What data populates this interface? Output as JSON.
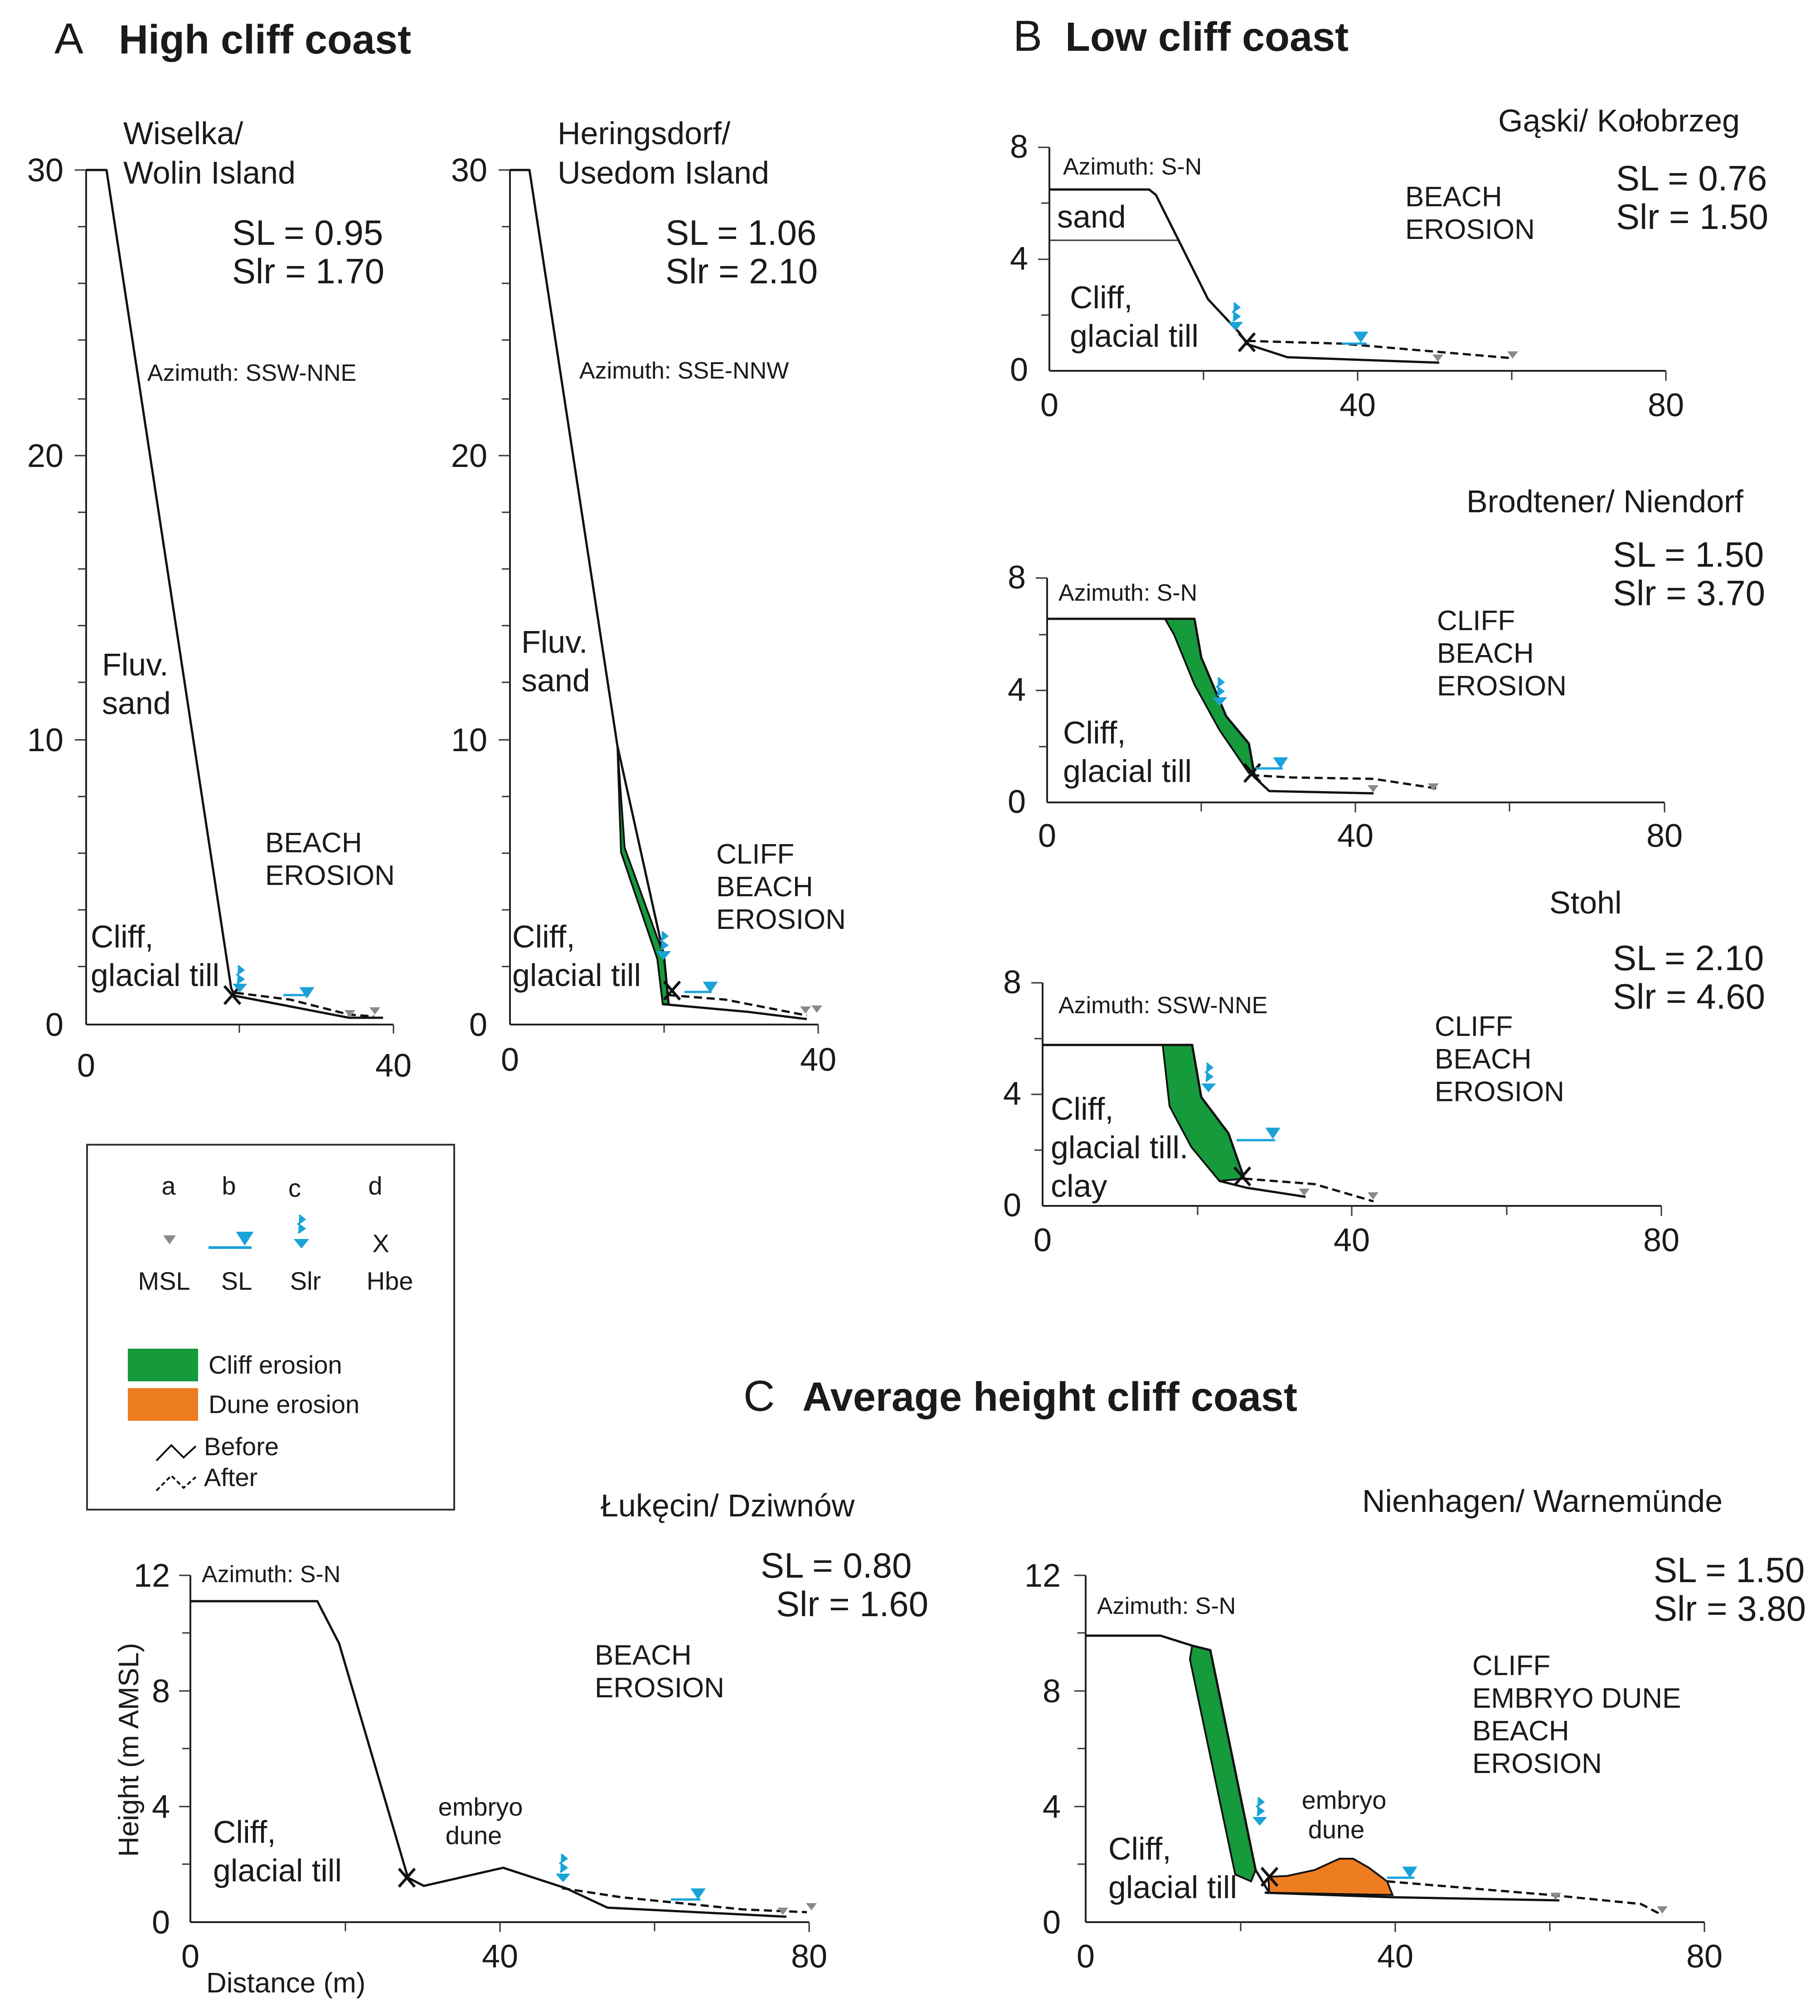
{
  "sections": {
    "a": {
      "letter": "A",
      "title": "High cliff coast"
    },
    "b": {
      "letter": "B",
      "title": "Low cliff coast"
    },
    "c": {
      "letter": "C",
      "title": "Average height cliff coast"
    }
  },
  "panels": {
    "wiselka": {
      "site_line1": "Wiselka/",
      "site_line2": "Wolin Island",
      "sl": "SL = 0.95",
      "slr": "Slr = 1.70",
      "azimuth": "Azimuth: SSW-NNE",
      "upper_unit_line1": "Fluv.",
      "upper_unit_line2": "sand",
      "lower_unit_line1": "Cliff,",
      "lower_unit_line2": "glacial till",
      "erosion_lines": [
        "BEACH",
        "EROSION"
      ],
      "y_ticks": [
        "30",
        "20",
        "10",
        "0"
      ],
      "x_ticks": [
        "0",
        "40"
      ]
    },
    "heringsdorf": {
      "site_line1": "Heringsdorf/",
      "site_line2": "Usedom Island",
      "sl": "SL = 1.06",
      "slr": "Slr = 2.10",
      "azimuth": "Azimuth: SSE-NNW",
      "upper_unit_line1": "Fluv.",
      "upper_unit_line2": "sand",
      "lower_unit_line1": "Cliff,",
      "lower_unit_line2": "glacial till",
      "erosion_lines": [
        "CLIFF",
        "BEACH",
        "EROSION"
      ],
      "y_ticks": [
        "30",
        "20",
        "10",
        "0"
      ],
      "x_ticks": [
        "0",
        "40"
      ]
    },
    "gaski": {
      "site": "Gąski/ Kołobrzeg",
      "sl": "SL = 0.76",
      "slr": "Slr = 1.50",
      "azimuth": "Azimuth: S-N",
      "upper_unit": "sand",
      "lower_unit_line1": "Cliff,",
      "lower_unit_line2": "glacial till",
      "erosion_lines": [
        "BEACH",
        "EROSION"
      ],
      "y_ticks": [
        "8",
        "4",
        "0"
      ],
      "x_ticks": [
        "0",
        "40",
        "80"
      ]
    },
    "brodtener": {
      "site": "Brodtener/ Niendorf",
      "sl": "SL = 1.50",
      "slr": "Slr = 3.70",
      "azimuth": "Azimuth: S-N",
      "lower_unit_line1": "Cliff,",
      "lower_unit_line2": "glacial till",
      "erosion_lines": [
        "CLIFF",
        "BEACH",
        "EROSION"
      ],
      "y_ticks": [
        "8",
        "4",
        "0"
      ],
      "x_ticks": [
        "0",
        "40",
        "80"
      ]
    },
    "stohl": {
      "site": "Stohl",
      "sl": "SL = 2.10",
      "slr": "Slr = 4.60",
      "azimuth": "Azimuth: SSW-NNE",
      "lower_unit_line1": "Cliff,",
      "lower_unit_line2": "glacial till.",
      "lower_unit_line3": "clay",
      "erosion_lines": [
        "CLIFF",
        "BEACH",
        "EROSION"
      ],
      "y_ticks": [
        "8",
        "4",
        "0"
      ],
      "x_ticks": [
        "0",
        "40",
        "80"
      ]
    },
    "lukecin": {
      "site": "Łukęcin/ Dziwnów",
      "sl": "SL = 0.80",
      "slr": "Slr = 1.60",
      "azimuth": "Azimuth: S-N",
      "lower_unit_line1": "Cliff,",
      "lower_unit_line2": "glacial till",
      "dune_line1": "embryo",
      "dune_line2": "dune",
      "erosion_lines": [
        "BEACH",
        "EROSION"
      ],
      "y_ticks": [
        "12",
        "8",
        "4",
        "0"
      ],
      "x_ticks": [
        "0",
        "40",
        "80"
      ],
      "y_axis_label": "Height (m AMSL)",
      "x_axis_label": "Distance (m)"
    },
    "nienhagen": {
      "site": "Nienhagen/ Warnemünde",
      "sl": "SL = 1.50",
      "slr": "Slr = 3.80",
      "azimuth": "Azimuth: S-N",
      "lower_unit_line1": "Cliff,",
      "lower_unit_line2": "glacial till",
      "dune_line1": "embryo",
      "dune_line2": "dune",
      "erosion_lines": [
        "CLIFF",
        "EMBRYO DUNE",
        "BEACH",
        "EROSION"
      ],
      "y_ticks": [
        "12",
        "8",
        "4",
        "0"
      ],
      "x_ticks": [
        "0",
        "40",
        "80"
      ]
    }
  },
  "legend": {
    "col_a": "a",
    "col_b": "b",
    "col_c": "c",
    "col_d": "d",
    "msl": "MSL",
    "sl": "SL",
    "slr": "Slr",
    "hbe": "Hbe",
    "hbe_symbol": "X",
    "cliff_erosion": "Cliff erosion",
    "dune_erosion": "Dune erosion",
    "before": "Before",
    "after": "After"
  },
  "colors": {
    "cliff_erosion": "#159a3c",
    "dune_erosion": "#ee7d22",
    "water_marker": "#1aa3d9",
    "msl_marker": "#8a8a8a",
    "line": "#111111"
  }
}
